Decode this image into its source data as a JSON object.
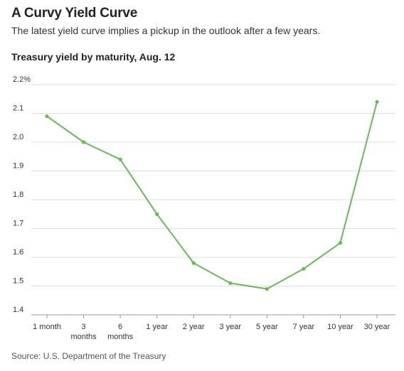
{
  "header": {
    "title": "A Curvy Yield Curve",
    "subtitle": "The latest yield curve implies a pickup in the outlook after a few years."
  },
  "source": "Source: U.S. Department of the Treasury",
  "colors": {
    "line": "#66bb55",
    "grid": "#dddddd",
    "axis": "#999999"
  },
  "chart_data": {
    "type": "line",
    "title": "Treasury yield by maturity, Aug. 12",
    "xlabel": "",
    "ylabel": "",
    "categories": [
      [
        "1 month"
      ],
      [
        "3",
        "months"
      ],
      [
        "6",
        "months"
      ],
      [
        "1 year"
      ],
      [
        "2 year"
      ],
      [
        "3 year"
      ],
      [
        "5 year"
      ],
      [
        "7 year"
      ],
      [
        "10 year"
      ],
      [
        "30 year"
      ]
    ],
    "series": [
      {
        "values": [
          2.09,
          2.0,
          1.94,
          1.75,
          1.58,
          1.51,
          1.49,
          1.56,
          1.65,
          2.14
        ]
      }
    ],
    "ylim": [
      1.4,
      2.2
    ],
    "yticks": [
      1.4,
      1.5,
      1.6,
      1.7,
      1.8,
      1.9,
      2.0,
      2.1,
      2.2
    ],
    "ytick_labels": [
      "1.4",
      "1.5",
      "1.6",
      "1.7",
      "1.8",
      "1.9",
      "2.0",
      "2.1",
      "2.2%"
    ],
    "grid": true,
    "legend": "none"
  }
}
